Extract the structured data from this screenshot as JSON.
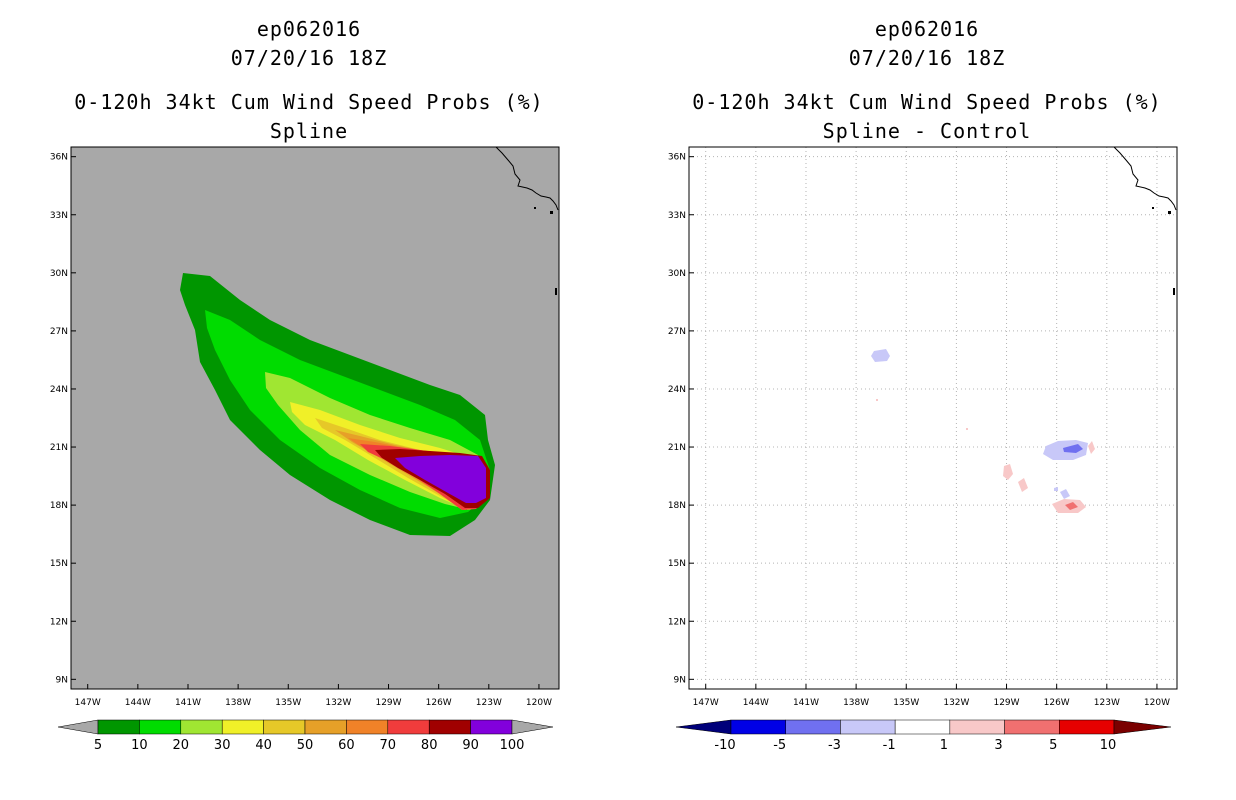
{
  "left": {
    "titles": [
      "ep062016",
      "07/20/16 18Z",
      "0-120h 34kt Cum Wind Speed Probs (%)",
      "Spline"
    ],
    "background_color": "#a8a8a8",
    "colorbar": {
      "colors": [
        "#009600",
        "#00dc00",
        "#a0e632",
        "#f0f028",
        "#e6c828",
        "#e6a028",
        "#f08228",
        "#f03c3c",
        "#a00000",
        "#8200dc"
      ],
      "labels": [
        "5",
        "10",
        "20",
        "30",
        "40",
        "50",
        "60",
        "70",
        "80",
        "90",
        "100"
      ],
      "under_color": "#a8a8a8",
      "over_color": "#a8a8a8"
    }
  },
  "right": {
    "titles": [
      "ep062016",
      "07/20/16 18Z",
      "0-120h 34kt Cum Wind Speed Probs (%)",
      "Spline - Control"
    ],
    "background_color": "#ffffff",
    "colorbar": {
      "colors": [
        "#0000e6",
        "#7070f0",
        "#c8c8f8",
        "#ffffff",
        "#f8c8c8",
        "#f07070",
        "#e60000"
      ],
      "labels": [
        "-10",
        "-5",
        "-3",
        "-1",
        "1",
        "3",
        "5",
        "10"
      ],
      "under_color": "#00007a",
      "over_color": "#7a0000"
    }
  },
  "axes": {
    "lon_ticks": [
      "147W",
      "144W",
      "141W",
      "138W",
      "135W",
      "132W",
      "129W",
      "126W",
      "123W",
      "120W"
    ],
    "lat_ticks": [
      "36N",
      "33N",
      "30N",
      "27N",
      "24N",
      "21N",
      "18N",
      "15N",
      "12N",
      "9N"
    ],
    "lon_range": [
      -148.0,
      -118.8
    ],
    "lat_range": [
      8.5,
      36.5
    ]
  }
}
